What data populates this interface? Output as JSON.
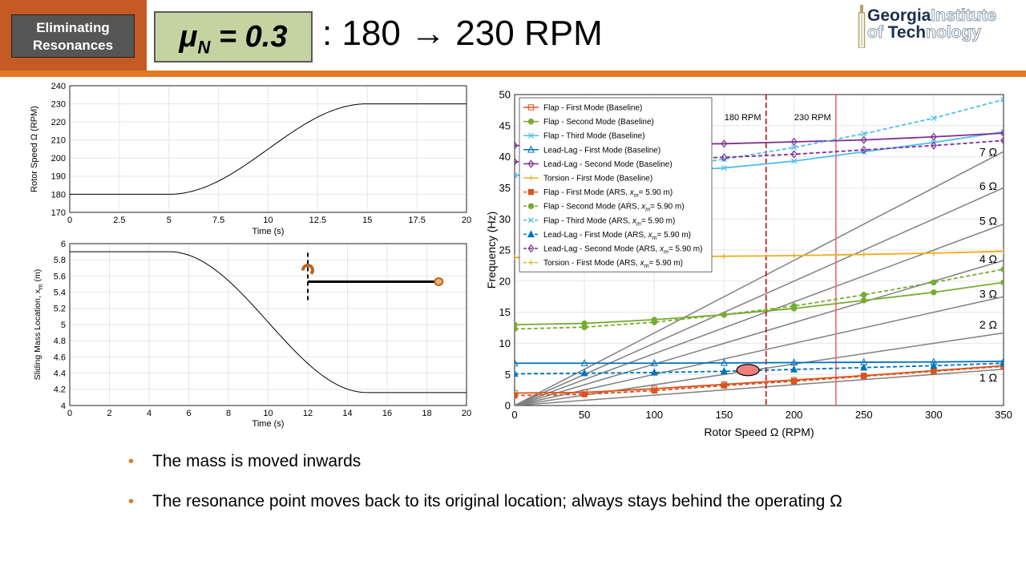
{
  "header": {
    "tag": [
      "Eliminating",
      "Resonances"
    ],
    "mu_base": "μ",
    "mu_sub": "N",
    "mu_value": " = 0.3",
    "title": ": 180 → 230 RPM",
    "logo_line1": [
      "Georgia",
      "Institute"
    ],
    "logo_line2": [
      "of ",
      "Tech",
      "nology"
    ]
  },
  "bullets": [
    "The mass is moved inwards",
    "The resonance point moves back to its original location; always stays behind the operating Ω"
  ],
  "colors": {
    "accent_orange": "#e07a23",
    "header_orange": "#c65a24",
    "mu_box": "#c5d3a2",
    "flap1": "#d9541e",
    "flap2": "#77ac30",
    "flap3": "#4dbeee",
    "lag1": "#0072bd",
    "lag2": "#7e2f8e",
    "torsion": "#edb120",
    "harmonic": "#808080",
    "marker180": "#c00000",
    "marker230": "#f06070"
  },
  "chart_data": [
    {
      "type": "line",
      "name": "rotor-speed-time",
      "xlabel": "Time (s)",
      "ylabel": "Rotor Speed Ω (RPM)",
      "xlim": [
        0,
        20
      ],
      "ylim": [
        170,
        240
      ],
      "xticks": [
        "0",
        "2.5",
        "5",
        "7.5",
        "10",
        "12.5",
        "15",
        "17.5",
        "20"
      ],
      "yticks": [
        "170",
        "180",
        "190",
        "200",
        "210",
        "220",
        "230",
        "240"
      ],
      "grid": true,
      "profile": {
        "t_start": 5,
        "t_end": 15,
        "v_start": 180,
        "v_end": 230
      }
    },
    {
      "type": "line",
      "name": "sliding-mass-time",
      "xlabel": "Time (s)",
      "ylabel": "Sliding Mass Location, x_m (m)",
      "xlim": [
        0,
        20
      ],
      "ylim": [
        4,
        6
      ],
      "xticks": [
        "0",
        "2",
        "4",
        "6",
        "8",
        "10",
        "12",
        "14",
        "16",
        "18",
        "20"
      ],
      "yticks": [
        "4",
        "4.2",
        "4.4",
        "4.6",
        "4.8",
        "5",
        "5.2",
        "5.4",
        "5.6",
        "5.8",
        "6"
      ],
      "grid": true,
      "profile": {
        "t_start": 5,
        "t_end": 15,
        "v_start": 5.9,
        "v_end": 4.16
      },
      "annotation": {
        "t": 12,
        "value": 5.53,
        "t_end": 18.6
      }
    },
    {
      "type": "line",
      "name": "campbell-diagram",
      "xlabel": "Rotor Speed Ω (RPM)",
      "ylabel": "Frequency (Hz)",
      "xlim": [
        0,
        350
      ],
      "ylim": [
        0,
        50
      ],
      "xticks": [
        "0",
        "50",
        "100",
        "150",
        "200",
        "250",
        "300",
        "350"
      ],
      "yticks": [
        "0",
        "5",
        "10",
        "15",
        "20",
        "25",
        "30",
        "35",
        "40",
        "45",
        "50"
      ],
      "grid": true,
      "legend": "top-left",
      "x": [
        0,
        50,
        100,
        150,
        200,
        250,
        300,
        350
      ],
      "series": [
        {
          "name": "Flap - First Mode (Baseline)",
          "color": "#d9541e",
          "dash": false,
          "marker": "square",
          "values": [
            2.0,
            2.1,
            2.7,
            3.4,
            4.1,
            4.8,
            5.6,
            6.4
          ]
        },
        {
          "name": "Flap - Second Mode (Baseline)",
          "color": "#77ac30",
          "dash": false,
          "marker": "circle",
          "values": [
            13.0,
            13.2,
            13.8,
            14.6,
            15.6,
            16.9,
            18.2,
            19.8
          ]
        },
        {
          "name": "Flap - Third Mode (Baseline)",
          "color": "#4dbeee",
          "dash": false,
          "marker": "x",
          "values": [
            37.0,
            37.2,
            37.6,
            38.2,
            39.3,
            40.8,
            42.3,
            44.0
          ]
        },
        {
          "name": "Lead-Lag - First Mode (Baseline)",
          "color": "#0072bd",
          "dash": false,
          "marker": "triangle",
          "values": [
            6.8,
            6.8,
            6.8,
            6.85,
            6.9,
            6.95,
            7.0,
            7.1
          ]
        },
        {
          "name": "Lead-Lag - Second Mode (Baseline)",
          "color": "#7e2f8e",
          "dash": false,
          "marker": "diamond",
          "values": [
            41.8,
            41.9,
            42.0,
            42.1,
            42.4,
            42.7,
            43.2,
            43.8
          ]
        },
        {
          "name": "Torsion - First Mode (Baseline)",
          "color": "#edb120",
          "dash": false,
          "marker": "plus",
          "values": [
            23.8,
            23.8,
            23.9,
            24.0,
            24.1,
            24.3,
            24.5,
            24.8
          ]
        },
        {
          "name": "Flap - First Mode (ARS,  x_m= 5.90 m)",
          "color": "#d9541e",
          "dash": true,
          "marker": "square",
          "values": [
            1.6,
            1.8,
            2.4,
            3.2,
            3.9,
            4.7,
            5.5,
            6.3
          ]
        },
        {
          "name": "Flap - Second Mode (ARS, x_m= 5.90 m)",
          "color": "#77ac30",
          "dash": true,
          "marker": "circle",
          "values": [
            12.3,
            12.6,
            13.4,
            14.6,
            16.0,
            17.8,
            19.8,
            21.9
          ]
        },
        {
          "name": "Flap - Third Mode (ARS, x_m= 5.90 m)",
          "color": "#4dbeee",
          "dash": true,
          "marker": "x",
          "values": [
            37.0,
            37.3,
            38.1,
            39.6,
            41.5,
            43.7,
            46.2,
            49.2
          ]
        },
        {
          "name": "Lead-Lag - First Mode (ARS, x_m= 5.90 m)",
          "color": "#0072bd",
          "dash": true,
          "marker": "triangle",
          "values": [
            5.1,
            5.2,
            5.3,
            5.5,
            5.8,
            6.1,
            6.4,
            6.8
          ]
        },
        {
          "name": "Lead-Lag - Second Mode (ARS, x_m= 5.90 m)",
          "color": "#7e2f8e",
          "dash": true,
          "marker": "diamond",
          "values": [
            39.2,
            39.4,
            39.6,
            39.9,
            40.4,
            41.1,
            41.8,
            42.6
          ]
        },
        {
          "name": "Torsion - First Mode (ARS, x_m= 5.90 m)",
          "color": "#edb120",
          "dash": true,
          "marker": "plus",
          "values": [
            23.8,
            23.8,
            23.9,
            24.0,
            24.1,
            24.3,
            24.5,
            24.8
          ]
        }
      ],
      "harmonics": [
        {
          "label": "1 Ω",
          "n": 1
        },
        {
          "label": "2 Ω",
          "n": 2
        },
        {
          "label": "3 Ω",
          "n": 3
        },
        {
          "label": "4 Ω",
          "n": 4
        },
        {
          "label": "5 Ω",
          "n": 5
        },
        {
          "label": "6 Ω",
          "n": 6
        },
        {
          "label": "7 Ω",
          "n": 7
        }
      ],
      "markers": [
        {
          "label": "180 RPM",
          "x": 180,
          "color": "#c00000",
          "dash": true
        },
        {
          "label": "230 RPM",
          "x": 230,
          "color": "#f06070",
          "dash": false
        }
      ],
      "highlight": {
        "x": 167,
        "y": 5.7
      }
    }
  ]
}
